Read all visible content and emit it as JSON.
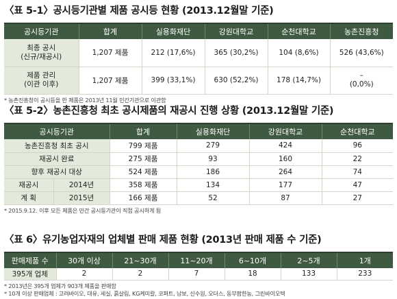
{
  "t1": {
    "title": "〈표 5-1〉공시등기관별 제품 공시등 현황 (2013.12월말 기준)",
    "headers": [
      "공시등기관",
      "합계",
      "실용화재단",
      "강원대학교",
      "순천대학교",
      "농촌진흥청"
    ],
    "rows": [
      {
        "label1": "최종 공시",
        "label2": "(신규/재공시)",
        "cells": [
          "1,207 제품",
          "212 (17,6%)",
          "365 (30,2%)",
          "104 (8,6%)",
          "526 (43,6%)"
        ]
      },
      {
        "label1": "제품 관리",
        "label2": "(이관 이후)",
        "cells": [
          "1,207 제품",
          "399 (33,1%)",
          "630 (52,2%)",
          "178 (14,7%)"
        ],
        "last1": "–",
        "last2": "(0,0%)"
      }
    ],
    "note": "* 농촌진흥청이 공시등을 한 제품은 2013년 11월 민간기관으로 이관함"
  },
  "t2": {
    "title": "〈표 5-2〉농촌진흥청 최초 공시제품의 재공시 진행 상황 (2013.12월말 기준)",
    "headers": [
      "공시등기관",
      "합계",
      "실용화재단",
      "강원대학교",
      "순천대학교"
    ],
    "rows": [
      {
        "label": "농촌진흥청 최초 공시",
        "cells": [
          "799 제품",
          "279",
          "424",
          "96"
        ]
      },
      {
        "label": "재공시 완료",
        "cells": [
          "275 제품",
          "93",
          "160",
          "22"
        ]
      },
      {
        "label": "향후 재공시 대상",
        "cells": [
          "524 제품",
          "186",
          "264",
          "74"
        ]
      },
      {
        "labelA": "재공시",
        "labelB": "2014년",
        "cells": [
          "358 제품",
          "134",
          "177",
          "47"
        ]
      },
      {
        "labelA": "계 획",
        "labelB": "2015년",
        "cells": [
          "166 제품",
          "52",
          "87",
          "27"
        ]
      }
    ],
    "note": "* 2015.9.12. 이후 모든 제품은 민간 공시등기관이 직접 공시하게 됨"
  },
  "t3": {
    "title": "〈표 6〉유기농업자재의 업체별 판매 제품 현황 (2013년 판매 제품 수 기준)",
    "headers": [
      "판매제품 수",
      "30개 이상",
      "21~30개",
      "11~20개",
      "6~10개",
      "2~5개",
      "1개"
    ],
    "row": {
      "label": "395개 업체",
      "cells": [
        "2",
        "2",
        "7",
        "18",
        "133",
        "233"
      ]
    },
    "note1": "* 2013년은 395개 업체가 903개 제품을 판매함",
    "note2": "* 10개 이상 판매업체 : 고려바이오, 대유, 세실, 흙살림, KG케미칼, 코퍼트, 남보, 신수원, 오더스, 동부팜한농, 그린바이오텍"
  }
}
